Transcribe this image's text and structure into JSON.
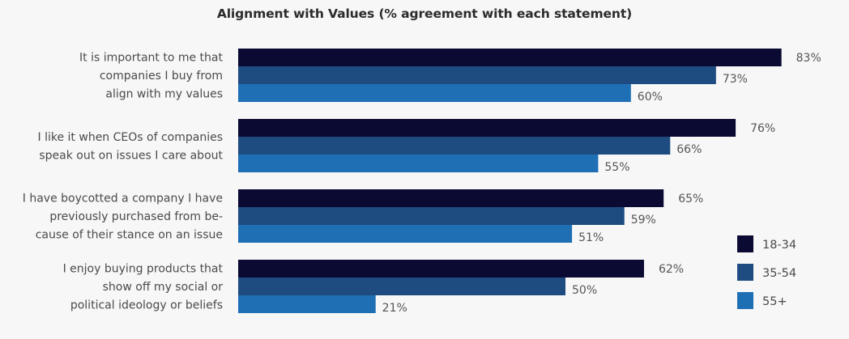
{
  "chart_data": {
    "type": "bar",
    "orientation": "horizontal",
    "title": "Alignment with Values (% agreement with each statement)",
    "xlabel": "",
    "ylabel": "",
    "xlim": [
      0,
      100
    ],
    "grid": false,
    "legend_position": "bottom-right",
    "categories": [
      [
        "It is important to me that",
        "companies I buy from",
        "align with my values"
      ],
      [
        "I like it when CEOs of companies",
        "speak out on issues I care about"
      ],
      [
        "I have boycotted a company I have",
        "previously purchased from be-",
        "cause of their stance on an issue"
      ],
      [
        "I enjoy buying products that",
        "show off my social or",
        "political ideology or beliefs"
      ]
    ],
    "series": [
      {
        "name": "18-34",
        "color": "#0b0a33",
        "values": [
          83,
          76,
          65,
          62
        ],
        "labels": [
          "83%",
          "76%",
          "65%",
          "62%"
        ]
      },
      {
        "name": "35-54",
        "color": "#1e4c80",
        "values": [
          73,
          66,
          59,
          50
        ],
        "labels": [
          "73%",
          "66%",
          "59%",
          "50%"
        ]
      },
      {
        "name": "55+",
        "color": "#1f6fb5",
        "values": [
          60,
          55,
          51,
          21
        ],
        "labels": [
          "60%",
          "55%",
          "51%",
          "21%"
        ]
      }
    ]
  }
}
